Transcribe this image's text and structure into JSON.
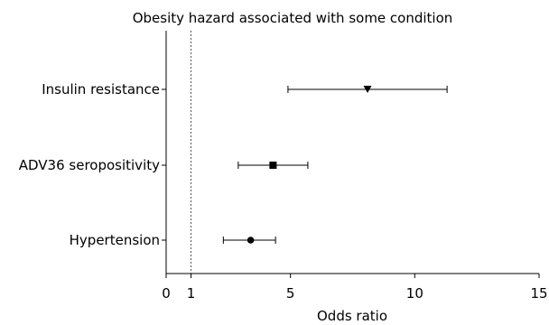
{
  "chart_data": {
    "type": "forest",
    "title": "Obesity hazard associated with some condition",
    "xlabel": "Odds ratio",
    "xlim": [
      0,
      15
    ],
    "xticks": [
      0,
      1,
      5,
      10,
      15
    ],
    "reference_line": 1,
    "grid": false,
    "rows": [
      {
        "label": "Insulin resistance",
        "estimate": 8.1,
        "lower": 4.9,
        "upper": 11.3,
        "marker": "triangle-down"
      },
      {
        "label": "ADV36 seropositivity",
        "estimate": 4.3,
        "lower": 2.9,
        "upper": 5.7,
        "marker": "square"
      },
      {
        "label": "Hypertension",
        "estimate": 3.4,
        "lower": 2.3,
        "upper": 4.4,
        "marker": "circle"
      }
    ]
  }
}
